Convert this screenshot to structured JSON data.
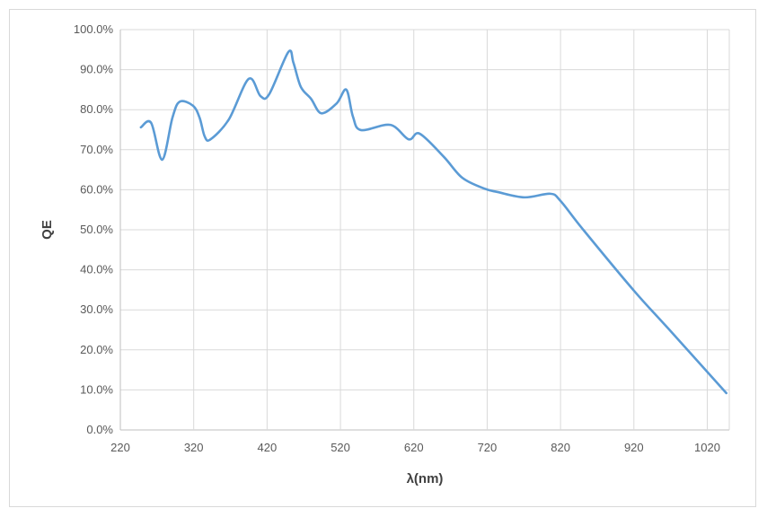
{
  "chart_data": {
    "type": "line",
    "title": "",
    "xlabel": "λ(nm)",
    "ylabel": "QE",
    "xlim": [
      220,
      1050
    ],
    "ylim": [
      0,
      100
    ],
    "x_ticks": [
      "220",
      "320",
      "420",
      "520",
      "620",
      "720",
      "820",
      "920",
      "1020"
    ],
    "y_ticks": [
      "0.0%",
      "10.0%",
      "20.0%",
      "30.0%",
      "40.0%",
      "50.0%",
      "60.0%",
      "70.0%",
      "80.0%",
      "90.0%",
      "100.0%"
    ],
    "grid": true,
    "legend": "none",
    "line_color": "#5B9BD5",
    "series": [
      {
        "x": [
          248,
          262,
          277,
          291,
          301,
          319,
          328,
          335,
          343,
          368,
          395,
          411,
          423,
          449,
          456,
          466,
          480,
          494,
          515,
          528,
          537,
          548,
          588,
          613,
          628,
          661,
          686,
          716,
          735,
          771,
          806,
          820,
          851,
          920,
          967,
          1046
        ],
        "y": [
          75.6,
          76.7,
          67.5,
          78,
          82,
          81,
          78,
          73.3,
          72.6,
          77.6,
          87.7,
          83.4,
          83.9,
          94.4,
          91.7,
          85.7,
          82.7,
          79.1,
          81.6,
          85,
          78.3,
          74.9,
          76.2,
          72.6,
          74,
          68.2,
          63,
          60.3,
          59.4,
          58.1,
          59,
          57.2,
          50,
          34.8,
          25.3,
          9.2
        ]
      }
    ]
  }
}
